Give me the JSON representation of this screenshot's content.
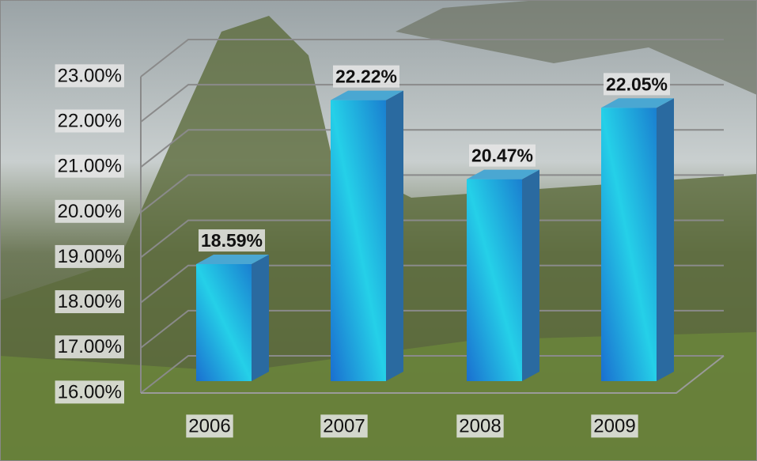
{
  "chart_data": {
    "type": "bar",
    "categories": [
      "2006",
      "2007",
      "2008",
      "2009"
    ],
    "values": [
      18.59,
      22.22,
      20.47,
      22.05
    ],
    "value_labels": [
      "18.59%",
      "22.22%",
      "20.47%",
      "22.05%"
    ],
    "ylim": [
      16,
      23
    ],
    "yticks": [
      {
        "value": 16,
        "label": "16.00%"
      },
      {
        "value": 17,
        "label": "17.00%"
      },
      {
        "value": 18,
        "label": "18.00%"
      },
      {
        "value": 19,
        "label": "19.00%"
      },
      {
        "value": 20,
        "label": "20.00%"
      },
      {
        "value": 21,
        "label": "21.00%"
      },
      {
        "value": 22,
        "label": "22.00%"
      },
      {
        "value": 23,
        "label": "23.00%"
      }
    ],
    "grid": true,
    "color": "#1fa8d8"
  }
}
